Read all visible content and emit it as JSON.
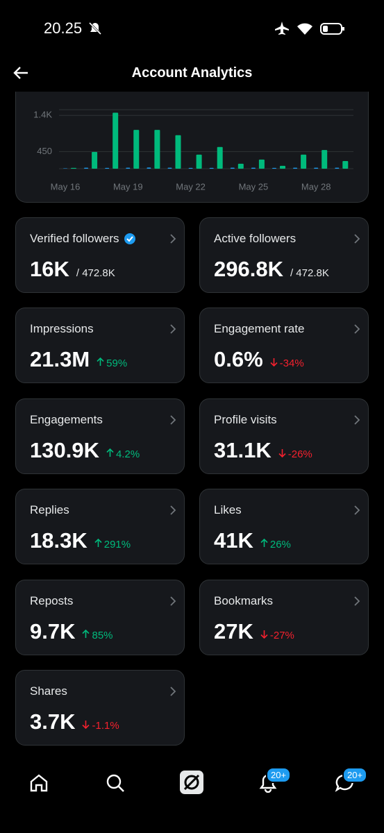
{
  "status_bar": {
    "time": "20.25"
  },
  "header": {
    "title": "Account Analytics"
  },
  "chart_data": {
    "type": "bar",
    "categories": [
      "May 16",
      null,
      null,
      "May 19",
      null,
      null,
      "May 22",
      null,
      null,
      "May 25",
      null,
      null,
      "May 28",
      null
    ],
    "series": [
      {
        "color": "#1d9bf0",
        "values": [
          10,
          25,
          20,
          25,
          30,
          25,
          20,
          20,
          25,
          25,
          20,
          25,
          25,
          25
        ]
      },
      {
        "color": "#00ba7c",
        "values": [
          20,
          440,
          1470,
          1020,
          1020,
          880,
          370,
          570,
          130,
          240,
          75,
          370,
          490,
          200
        ]
      }
    ],
    "ylim": [
      0,
      1550
    ],
    "yticks": [
      450,
      {
        "value": 1400,
        "label": "1.4K"
      }
    ],
    "grid": true
  },
  "cards": [
    {
      "label": "Verified followers",
      "value": "16K",
      "total": "/ 472.8K",
      "verified": true
    },
    {
      "label": "Active followers",
      "value": "296.8K",
      "total": "/ 472.8K"
    },
    {
      "label": "Impressions",
      "value": "21.3M",
      "change": "59%"
    },
    {
      "label": "Engagement rate",
      "value": "0.6%",
      "change": "-34%"
    },
    {
      "label": "Engagements",
      "value": "130.9K",
      "change": "4.2%"
    },
    {
      "label": "Profile visits",
      "value": "31.1K",
      "change": "-26%"
    },
    {
      "label": "Replies",
      "value": "18.3K",
      "change": "291%"
    },
    {
      "label": "Likes",
      "value": "41K",
      "change": "26%"
    },
    {
      "label": "Reposts",
      "value": "9.7K",
      "change": "85%"
    },
    {
      "label": "Bookmarks",
      "value": "27K",
      "change": "-27%"
    },
    {
      "label": "Shares",
      "value": "3.7K",
      "change": "-1.1%"
    }
  ],
  "nav": {
    "badges": [
      "20+",
      "20+"
    ]
  }
}
